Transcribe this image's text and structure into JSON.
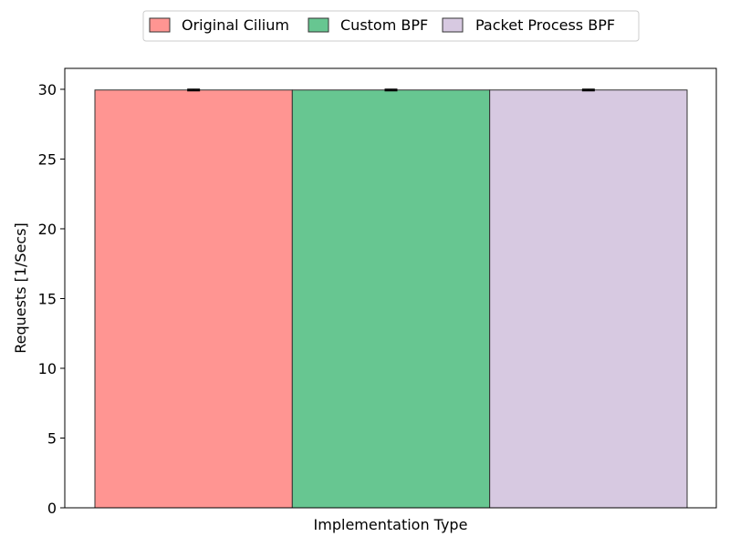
{
  "chart_data": {
    "type": "bar",
    "title": "",
    "xlabel": "Implementation Type",
    "ylabel": "Requests [1/Secs]",
    "ylim": [
      0,
      31.5
    ],
    "yticks": [
      0,
      5,
      10,
      15,
      20,
      25,
      30
    ],
    "categories": [
      ""
    ],
    "series": [
      {
        "name": "Original Cilium",
        "values": [
          29.95
        ],
        "error": [
          0.05
        ],
        "color": "#ff9592"
      },
      {
        "name": "Custom BPF",
        "values": [
          29.95
        ],
        "error": [
          0.05
        ],
        "color": "#67c691"
      },
      {
        "name": "Packet Process BPF",
        "values": [
          29.95
        ],
        "error": [
          0.05
        ],
        "color": "#d7c9e1"
      }
    ],
    "grid": false,
    "legend_position": "top-center"
  }
}
